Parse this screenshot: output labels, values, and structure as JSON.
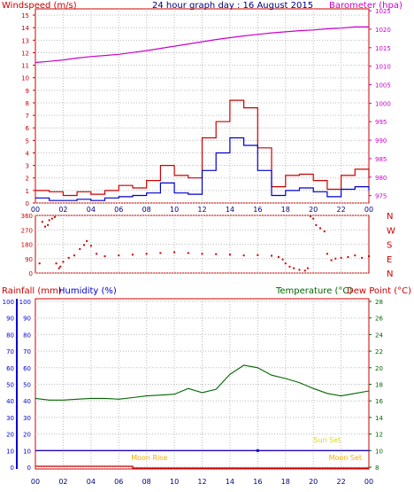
{
  "colors": {
    "wind_speed": "#cc0000",
    "wind_avg": "#0000cc",
    "barometer": "#cc00cc",
    "direction": "#cc0000",
    "temperature": "#006600",
    "dew_point": "#cc0000",
    "rainfall": "#cc0000",
    "humidity": "#0000cc",
    "sun": "#dddd00",
    "moon": "#ffaa00"
  },
  "chart_data": [
    {
      "type": "line",
      "title": "24 hour graph day : 16 August 2015",
      "left_axis_label": "Windspeed (m/s)",
      "right_axis_label": "Barometer (hpa)",
      "left_ticks": [
        "0",
        "1",
        "2",
        "3",
        "4",
        "5",
        "6",
        "7",
        "8",
        "9",
        "10",
        "11",
        "12",
        "13",
        "14",
        "15"
      ],
      "right_ticks": [
        "975",
        "980",
        "985",
        "990",
        "995",
        "1000",
        "1005",
        "1010",
        "1015",
        "1020",
        "1025"
      ],
      "x_ticks": [
        "00",
        "02",
        "04",
        "06",
        "08",
        "10",
        "12",
        "14",
        "16",
        "18",
        "20",
        "22",
        "00"
      ],
      "ylim_left": [
        0,
        15.5
      ],
      "ylim_right": [
        973,
        1025.5
      ],
      "x": [
        0,
        1,
        2,
        3,
        4,
        5,
        6,
        7,
        8,
        9,
        10,
        11,
        12,
        13,
        14,
        15,
        16,
        17,
        18,
        19,
        20,
        21,
        22,
        23,
        24
      ],
      "series": [
        {
          "name": "gust",
          "values": [
            1,
            0.9,
            0.6,
            0.9,
            0.7,
            1.0,
            1.4,
            1.2,
            1.8,
            3.0,
            2.2,
            2.0,
            5.2,
            6.5,
            8.2,
            7.6,
            4.4,
            1.3,
            2.2,
            2.3,
            1.8,
            1.1,
            2.2,
            2.7,
            2.0
          ]
        },
        {
          "name": "avg",
          "values": [
            0.4,
            0.2,
            0.2,
            0.3,
            0.2,
            0.4,
            0.5,
            0.6,
            0.8,
            1.6,
            0.8,
            0.7,
            2.6,
            4.0,
            5.2,
            4.6,
            2.6,
            0.6,
            1.0,
            1.2,
            0.9,
            0.5,
            1.1,
            1.3,
            1.0
          ]
        },
        {
          "name": "barometer",
          "values": [
            1011,
            1011.3,
            1011.7,
            1012.2,
            1012.6,
            1012.9,
            1013.2,
            1013.7,
            1014.2,
            1014.8,
            1015.4,
            1016,
            1016.6,
            1017.2,
            1017.7,
            1018.2,
            1018.6,
            1019,
            1019.3,
            1019.6,
            1019.8,
            1020.1,
            1020.3,
            1020.6,
            1020.6
          ]
        }
      ]
    },
    {
      "type": "scatter",
      "left_ticks": [
        "360",
        "270",
        "180",
        "90",
        "0"
      ],
      "right_ticks": [
        "N",
        "W",
        "S",
        "E",
        "N"
      ],
      "ylim": [
        0,
        360
      ],
      "x": [
        0.3,
        0.5,
        0.7,
        0.9,
        1.0,
        1.2,
        1.4,
        1.5,
        1.7,
        1.8,
        2.0,
        2.4,
        2.8,
        3.2,
        3.5,
        3.7,
        4.0,
        4.4,
        5.0,
        6.0,
        7.0,
        8.0,
        9.0,
        10.0,
        11.0,
        12.0,
        13.0,
        14.0,
        15.0,
        16.0,
        17.0,
        17.5,
        17.8,
        18.0,
        18.3,
        18.6,
        19.0,
        19.4,
        19.6,
        19.8,
        20.0,
        20.2,
        20.5,
        20.8,
        21.0,
        21.3,
        21.6,
        22.0,
        22.5,
        23.0,
        23.5,
        24.0
      ],
      "values": [
        60,
        320,
        290,
        300,
        330,
        340,
        350,
        60,
        30,
        40,
        70,
        95,
        110,
        150,
        175,
        200,
        170,
        120,
        105,
        110,
        115,
        120,
        125,
        130,
        125,
        120,
        118,
        115,
        110,
        112,
        108,
        100,
        85,
        60,
        40,
        30,
        20,
        15,
        30,
        355,
        340,
        300,
        280,
        260,
        120,
        80,
        90,
        95,
        100,
        110,
        95,
        105
      ]
    },
    {
      "type": "line",
      "left_axis_label": "Rainfall (mm)",
      "left_axis_label2": "Humidity (%)",
      "right_axis_label": "Temperature (°C)",
      "right_axis_label2": "Dew Point (°C)",
      "left_ticks_rain": [
        "0",
        "10",
        "20",
        "30",
        "40",
        "50",
        "60",
        "70",
        "80",
        "90",
        "100"
      ],
      "left_ticks_hum": [
        "0",
        "10",
        "20",
        "30",
        "40",
        "50",
        "60",
        "70",
        "80",
        "90",
        "100"
      ],
      "right_ticks": [
        "8",
        "10",
        "12",
        "14",
        "16",
        "18",
        "20",
        "22",
        "24",
        "26",
        "28"
      ],
      "x_ticks": [
        "00",
        "02",
        "04",
        "06",
        "08",
        "10",
        "12",
        "14",
        "16",
        "18",
        "20",
        "22",
        "00"
      ],
      "ylim_temp": [
        8,
        28
      ],
      "x": [
        0,
        1,
        2,
        3,
        4,
        5,
        6,
        7,
        8,
        9,
        10,
        11,
        12,
        13,
        14,
        15,
        16,
        17,
        18,
        19,
        20,
        21,
        22,
        23,
        24
      ],
      "series": [
        {
          "name": "temperature",
          "values": [
            16.3,
            16.1,
            16.1,
            16.2,
            16.3,
            16.3,
            16.2,
            16.4,
            16.6,
            16.7,
            16.8,
            17.5,
            17.0,
            17.4,
            19.2,
            20.3,
            20.0,
            19.1,
            18.7,
            18.2,
            17.5,
            16.9,
            16.6,
            16.9,
            17.2
          ]
        },
        {
          "name": "dew_point",
          "values": [
            10,
            10,
            10,
            10,
            10,
            10,
            10,
            10,
            10,
            10,
            10,
            10,
            10,
            10,
            10,
            10,
            10,
            10,
            10,
            10,
            10,
            10,
            10,
            10,
            10
          ]
        },
        {
          "name": "humidity",
          "values": [
            10,
            10,
            10,
            10,
            10,
            10,
            10,
            10,
            10,
            10,
            10,
            10,
            10,
            10,
            10,
            10,
            10,
            10,
            10,
            10,
            10,
            10,
            10,
            10,
            10
          ]
        }
      ],
      "annotations": [
        {
          "label": "Sun Set",
          "x": 21.0
        },
        {
          "label": "Moon Rise",
          "x": 8.2
        },
        {
          "label": "Moon Set",
          "x": 22.3
        }
      ]
    }
  ]
}
